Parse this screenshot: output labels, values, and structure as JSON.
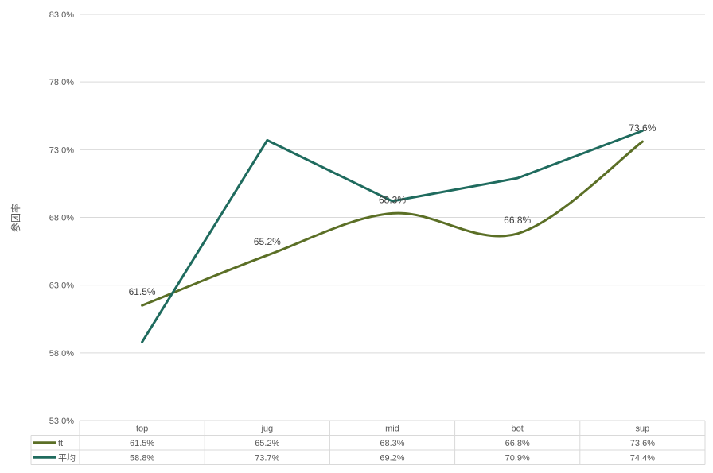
{
  "chart_data": {
    "type": "line",
    "title": "",
    "xlabel": "",
    "ylabel": "参团率",
    "categories": [
      "top",
      "jug",
      "mid",
      "bot",
      "sup"
    ],
    "ylim": [
      0.53,
      0.83
    ],
    "yticks": [
      "53.0%",
      "58.0%",
      "63.0%",
      "68.0%",
      "73.0%",
      "78.0%",
      "83.0%"
    ],
    "grid": true,
    "legend": "data-table",
    "series": [
      {
        "name": "tt",
        "color": "#5b6f26",
        "smooth": true,
        "values": [
          0.615,
          0.652,
          0.683,
          0.668,
          0.736
        ],
        "labels": [
          "61.5%",
          "65.2%",
          "68.3%",
          "66.8%",
          "73.6%"
        ],
        "show_point_labels": true
      },
      {
        "name": "平均",
        "color": "#1f6b5e",
        "smooth": false,
        "values": [
          0.588,
          0.737,
          0.692,
          0.709,
          0.744
        ],
        "labels": [
          "58.8%",
          "73.7%",
          "69.2%",
          "70.9%",
          "74.4%"
        ],
        "show_point_labels": false
      }
    ]
  }
}
